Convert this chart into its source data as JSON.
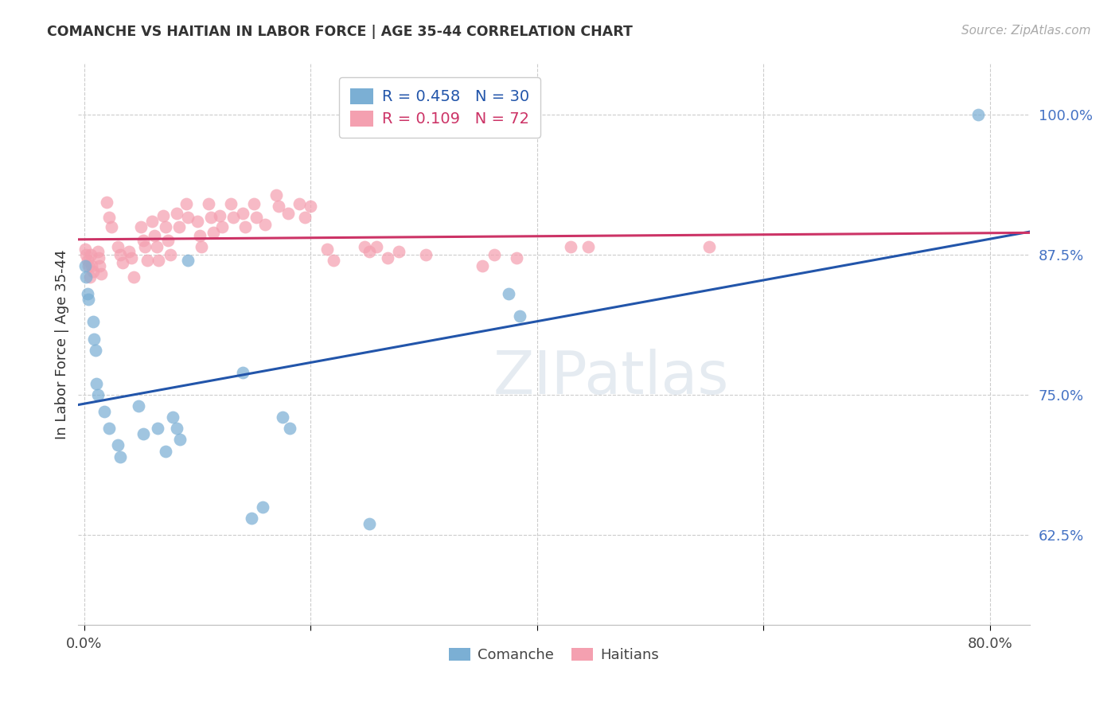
{
  "title": "COMANCHE VS HAITIAN IN LABOR FORCE | AGE 35-44 CORRELATION CHART",
  "source": "Source: ZipAtlas.com",
  "ylabel": "In Labor Force | Age 35-44",
  "ylim": [
    0.545,
    1.045
  ],
  "xlim": [
    -0.005,
    0.835
  ],
  "comanche_color": "#7BAFD4",
  "haitian_color": "#F4A0B0",
  "comanche_line_color": "#2255aa",
  "haitian_line_color": "#cc3366",
  "R_comanche": 0.458,
  "N_comanche": 30,
  "R_haitian": 0.109,
  "N_haitian": 72,
  "legend_label_comanche": "Comanche",
  "legend_label_haitian": "Haitians",
  "comanche_x": [
    0.001,
    0.002,
    0.003,
    0.004,
    0.008,
    0.009,
    0.01,
    0.011,
    0.012,
    0.018,
    0.022,
    0.03,
    0.032,
    0.048,
    0.052,
    0.065,
    0.072,
    0.078,
    0.082,
    0.085,
    0.092,
    0.14,
    0.148,
    0.158,
    0.175,
    0.182,
    0.252,
    0.375,
    0.385,
    0.79
  ],
  "comanche_y": [
    0.865,
    0.855,
    0.84,
    0.835,
    0.815,
    0.8,
    0.79,
    0.76,
    0.75,
    0.735,
    0.72,
    0.705,
    0.695,
    0.74,
    0.715,
    0.72,
    0.7,
    0.73,
    0.72,
    0.71,
    0.87,
    0.77,
    0.64,
    0.65,
    0.73,
    0.72,
    0.635,
    0.84,
    0.82,
    1.0
  ],
  "haitian_x": [
    0.001,
    0.002,
    0.003,
    0.004,
    0.005,
    0.006,
    0.007,
    0.008,
    0.012,
    0.013,
    0.014,
    0.015,
    0.02,
    0.022,
    0.024,
    0.03,
    0.032,
    0.034,
    0.04,
    0.042,
    0.044,
    0.05,
    0.052,
    0.054,
    0.056,
    0.06,
    0.062,
    0.064,
    0.066,
    0.07,
    0.072,
    0.074,
    0.076,
    0.082,
    0.084,
    0.09,
    0.092,
    0.1,
    0.102,
    0.104,
    0.11,
    0.112,
    0.114,
    0.12,
    0.122,
    0.13,
    0.132,
    0.14,
    0.142,
    0.15,
    0.152,
    0.16,
    0.17,
    0.172,
    0.18,
    0.19,
    0.195,
    0.2,
    0.215,
    0.22,
    0.248,
    0.252,
    0.258,
    0.268,
    0.278,
    0.302,
    0.352,
    0.362,
    0.382,
    0.43,
    0.445,
    0.552
  ],
  "haitian_y": [
    0.88,
    0.875,
    0.87,
    0.865,
    0.855,
    0.875,
    0.865,
    0.86,
    0.878,
    0.872,
    0.865,
    0.858,
    0.922,
    0.908,
    0.9,
    0.882,
    0.875,
    0.868,
    0.878,
    0.872,
    0.855,
    0.9,
    0.888,
    0.882,
    0.87,
    0.905,
    0.892,
    0.882,
    0.87,
    0.91,
    0.9,
    0.888,
    0.875,
    0.912,
    0.9,
    0.92,
    0.908,
    0.905,
    0.892,
    0.882,
    0.92,
    0.908,
    0.895,
    0.91,
    0.9,
    0.92,
    0.908,
    0.912,
    0.9,
    0.92,
    0.908,
    0.902,
    0.928,
    0.918,
    0.912,
    0.92,
    0.908,
    0.918,
    0.88,
    0.87,
    0.882,
    0.878,
    0.882,
    0.872,
    0.878,
    0.875,
    0.865,
    0.875,
    0.872,
    0.882,
    0.882,
    0.882
  ],
  "watermark": "ZIPatlas",
  "grid_color": "#cccccc",
  "bg_color": "#ffffff",
  "ytick_positions": [
    0.625,
    0.75,
    0.875,
    1.0
  ],
  "ytick_labels": [
    "62.5%",
    "75.0%",
    "87.5%",
    "100.0%"
  ],
  "xtick_positions": [
    0.0,
    0.2,
    0.4,
    0.6,
    0.8
  ],
  "xtick_labels": [
    "0.0%",
    "",
    "",
    "",
    "80.0%"
  ]
}
